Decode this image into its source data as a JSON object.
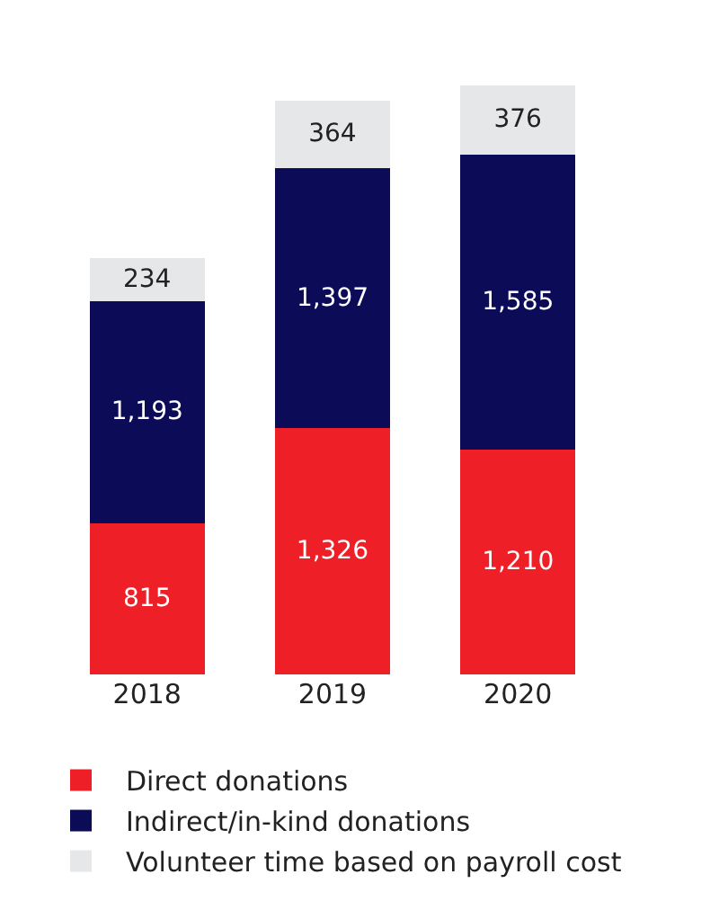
{
  "chart_data": {
    "type": "bar",
    "stacked": true,
    "legend": "bottom",
    "categories": [
      "2018",
      "2019",
      "2020"
    ],
    "series": [
      {
        "name": "Direct donations",
        "color": "#ee1f26",
        "values": [
          815,
          1326,
          1210
        ],
        "value_labels": [
          "815",
          "1,326",
          "1,210"
        ]
      },
      {
        "name": "Indirect/in-kind donations",
        "color": "#0b0b57",
        "values": [
          1193,
          1397,
          1585
        ],
        "value_labels": [
          "1,193",
          "1,397",
          "1,585"
        ]
      },
      {
        "name": "Volunteer time based on payroll cost",
        "color": "#e6e7e9",
        "values": [
          234,
          364,
          376
        ],
        "value_labels": [
          "234",
          "364",
          "376"
        ]
      }
    ]
  }
}
